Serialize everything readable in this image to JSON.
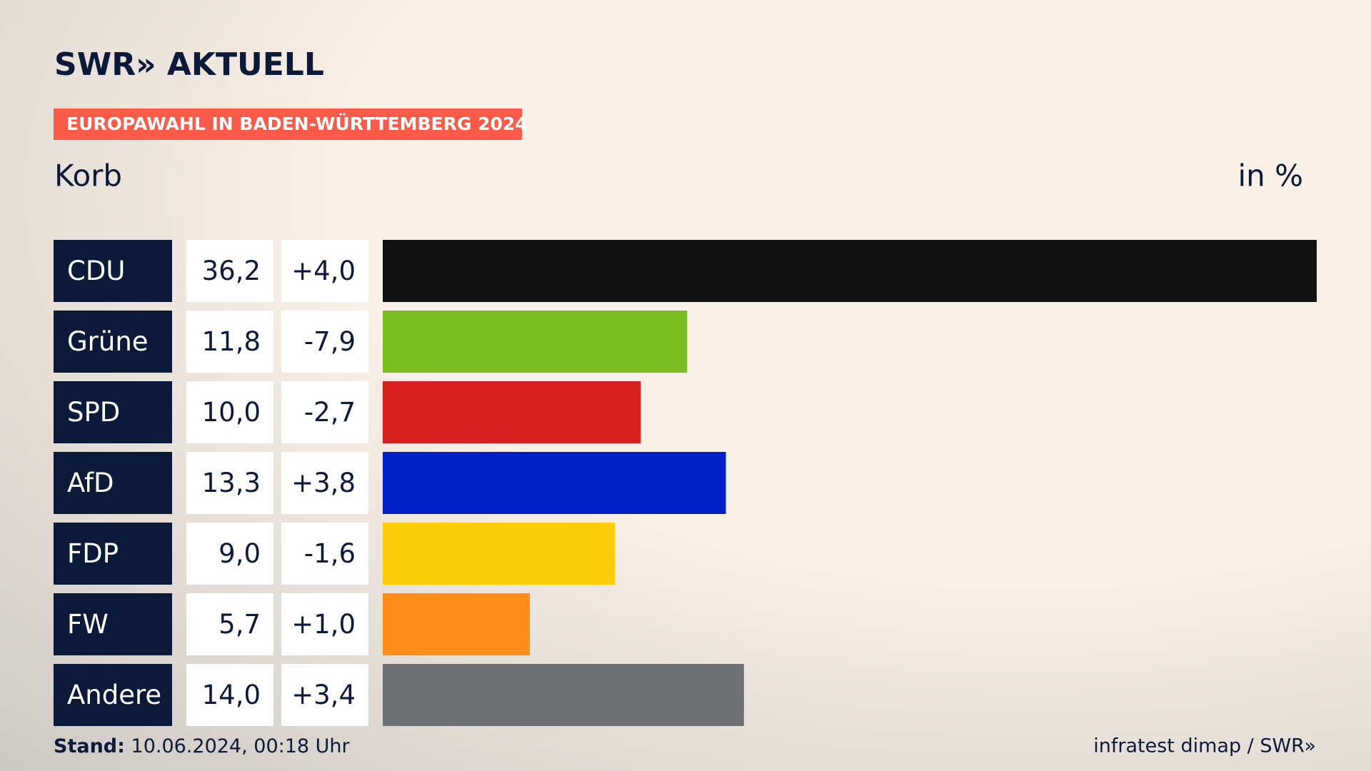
{
  "chart_data": {
    "type": "hbar",
    "brand": "SWR» AKTUELL",
    "badge": "EUROPAWAHL IN BADEN-WÜRTTEMBERG 2024",
    "title": "Korb",
    "unit": "in %",
    "categories": [
      "CDU",
      "Grüne",
      "SPD",
      "AfD",
      "FDP",
      "FW",
      "Andere"
    ],
    "values": [
      36.2,
      11.8,
      10.0,
      13.3,
      9.0,
      5.7,
      14.0
    ],
    "value_labels": [
      "36,2",
      "11,8",
      "10,0",
      "13,3",
      "9,0",
      "5,7",
      "14,0"
    ],
    "change_labels": [
      "+4,0",
      "-7,9",
      "-2,7",
      "+3,8",
      "-1,6",
      "+1,0",
      "+3,4"
    ],
    "colors": [
      "#121212",
      "#79bd1e",
      "#d71f1f",
      "#0021c8",
      "#fdcd0a",
      "#fd8d19",
      "#6f7072"
    ],
    "xlim": [
      0,
      36.2
    ],
    "footer_label": "Stand:",
    "footer_date": "10.06.2024, 00:18 Uhr",
    "source": "infratest dimap / SWR»"
  }
}
